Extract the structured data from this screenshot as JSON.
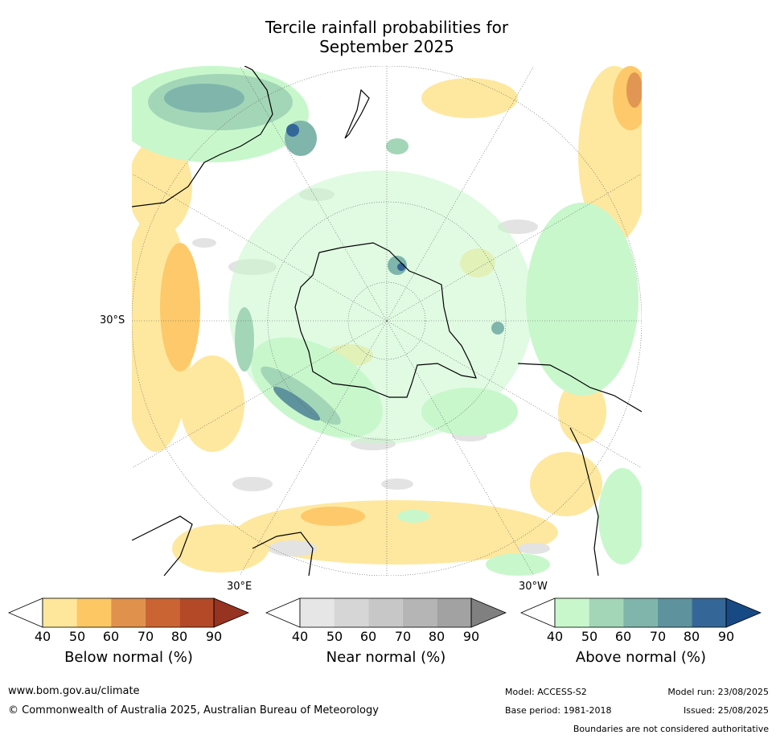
{
  "title_line1": "Tercile rainfall probabilities for",
  "title_line2": "September 2025",
  "map": {
    "lat_label": "30°S",
    "lon_label_left": "30°E",
    "lon_label_right": "30°W"
  },
  "legends": [
    {
      "title": "Below normal (%)",
      "ticks": [
        "40",
        "50",
        "60",
        "70",
        "80",
        "90"
      ],
      "colors": [
        "#ffffff",
        "#fee79a",
        "#fdc763",
        "#e0914b",
        "#cb6433",
        "#b34927",
        "#973321"
      ]
    },
    {
      "title": "Near normal (%)",
      "ticks": [
        "40",
        "50",
        "60",
        "70",
        "80",
        "90"
      ],
      "colors": [
        "#ffffff",
        "#e6e6e6",
        "#d6d6d6",
        "#c7c7c7",
        "#b5b5b5",
        "#a2a2a2",
        "#808080"
      ]
    },
    {
      "title": "Above normal (%)",
      "ticks": [
        "40",
        "50",
        "60",
        "70",
        "80",
        "90"
      ],
      "colors": [
        "#ffffff",
        "#c8f7cc",
        "#a3d6b7",
        "#7fb5ab",
        "#5e939e",
        "#346797",
        "#174a85"
      ]
    }
  ],
  "footer": {
    "url": "www.bom.gov.au/climate",
    "copyright": "© Commonwealth of Australia 2025, Australian Bureau of Meteorology",
    "model": "Model: ACCESS-S2",
    "model_run": "Model run: 23/08/2025",
    "base_period": "Base period: 1981-2018",
    "issued": "Issued: 25/08/2025",
    "disclaimer": "Boundaries are not considered authoritative"
  }
}
